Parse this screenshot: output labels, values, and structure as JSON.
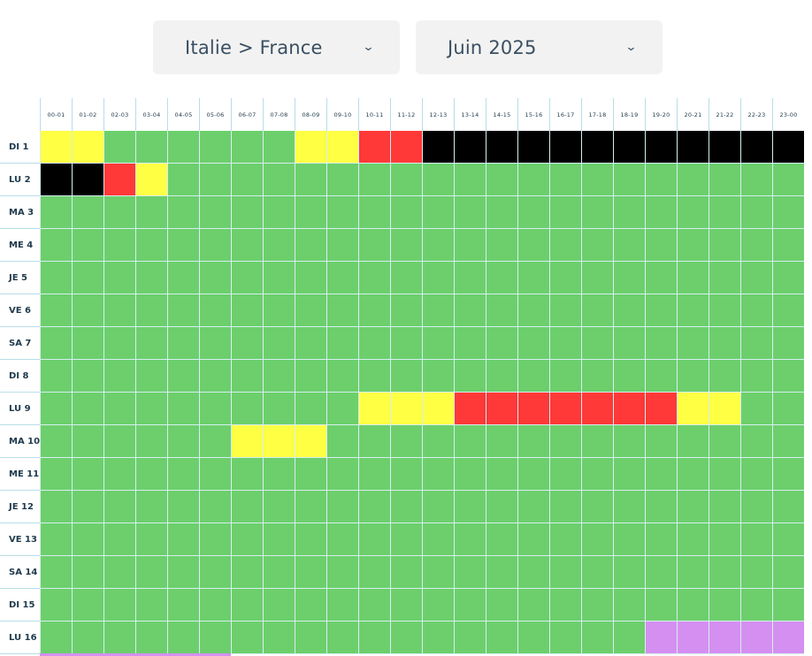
{
  "selectors": {
    "route": "Italie > France",
    "month": "Juin 2025",
    "chevron": "⌄"
  },
  "colors": {
    "G": "#6ccf6c",
    "Y": "#ffff44",
    "R": "#ff3838",
    "B": "#000000",
    "P": "#d48ff0"
  },
  "hours": [
    "00-01",
    "01-02",
    "02-03",
    "03-04",
    "04-05",
    "05-06",
    "06-07",
    "07-08",
    "08-09",
    "09-10",
    "10-11",
    "11-12",
    "12-13",
    "13-14",
    "14-15",
    "15-16",
    "16-17",
    "17-18",
    "18-19",
    "19-20",
    "20-21",
    "21-22",
    "22-23",
    "23-00"
  ],
  "days": [
    {
      "label": "DI 1",
      "cells": "YYGGGGGGYYRRBBBBBBBBBBBB"
    },
    {
      "label": "LU 2",
      "cells": "BBRYGGGGGGGGGGGGGGGGGGGG"
    },
    {
      "label": "MA 3",
      "cells": "GGGGGGGGGGGGGGGGGGGGGGGG"
    },
    {
      "label": "ME 4",
      "cells": "GGGGGGGGGGGGGGGGGGGGGGGG"
    },
    {
      "label": "JE 5",
      "cells": "GGGGGGGGGGGGGGGGGGGGGGGG"
    },
    {
      "label": "VE 6",
      "cells": "GGGGGGGGGGGGGGGGGGGGGGGG"
    },
    {
      "label": "SA 7",
      "cells": "GGGGGGGGGGGGGGGGGGGGGGGG"
    },
    {
      "label": "DI 8",
      "cells": "GGGGGGGGGGGGGGGGGGGGGGGG"
    },
    {
      "label": "LU 9",
      "cells": "GGGGGGGGGGYYYRRRRRRRYYGG"
    },
    {
      "label": "MA 10",
      "cells": "GGGGGGYYYGGGGGGGGGGGGGGG"
    },
    {
      "label": "ME 11",
      "cells": "GGGGGGGGGGGGGGGGGGGGGGGG"
    },
    {
      "label": "JE 12",
      "cells": "GGGGGGGGGGGGGGGGGGGGGGGG"
    },
    {
      "label": "VE 13",
      "cells": "GGGGGGGGGGGGGGGGGGGGGGGG"
    },
    {
      "label": "SA 14",
      "cells": "GGGGGGGGGGGGGGGGGGGGGGGG"
    },
    {
      "label": "DI 15",
      "cells": "GGGGGGGGGGGGGGGGGGGGGGGG"
    },
    {
      "label": "LU 16",
      "cells": "GGGGGGGGGGGGGGGGGGGPPPPP"
    }
  ]
}
